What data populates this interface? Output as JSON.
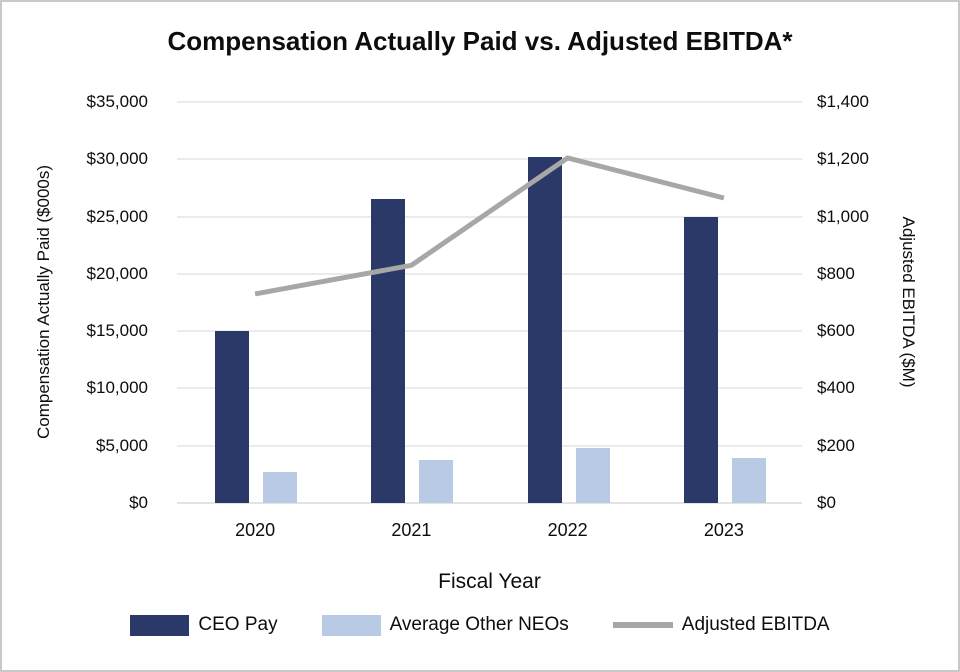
{
  "chart_data": {
    "type": "combo-bar-line",
    "title": "Compensation Actually Paid vs. Adjusted EBITDA*",
    "categories": [
      "2020",
      "2021",
      "2022",
      "2023"
    ],
    "xlabel": "Fiscal Year",
    "grid": true,
    "left_axis": {
      "label": "Compensation Actually Paid ($000s)",
      "min": 0,
      "max": 35000,
      "step": 5000,
      "tick_labels": [
        "$35,000",
        "$30,000",
        "$25,000",
        "$20,000",
        "$15,000",
        "$10,000",
        "$5,000",
        "$0"
      ]
    },
    "right_axis": {
      "label": "Adjusted EBITDA ($M)",
      "min": 0,
      "max": 1400,
      "step": 200,
      "tick_labels": [
        "$1,400",
        "$1,200",
        "$1,000",
        "$800",
        "$600",
        "$400",
        "$200",
        "$0"
      ]
    },
    "series": [
      {
        "name": "CEO Pay",
        "kind": "bar",
        "axis": "left",
        "color": "#2b3968",
        "values": [
          15000,
          26500,
          30200,
          25000
        ]
      },
      {
        "name": "Average Other NEOs",
        "kind": "bar",
        "axis": "left",
        "color": "#b9cbe4",
        "values": [
          2700,
          3750,
          4800,
          3900
        ]
      },
      {
        "name": "Adjusted EBITDA",
        "kind": "line",
        "axis": "right",
        "color": "#a7a7a7",
        "values": [
          730,
          830,
          1205,
          1065
        ]
      }
    ],
    "legend": {
      "position": "bottom",
      "items": [
        "CEO Pay",
        "Average Other NEOs",
        "Adjusted EBITDA"
      ]
    }
  }
}
